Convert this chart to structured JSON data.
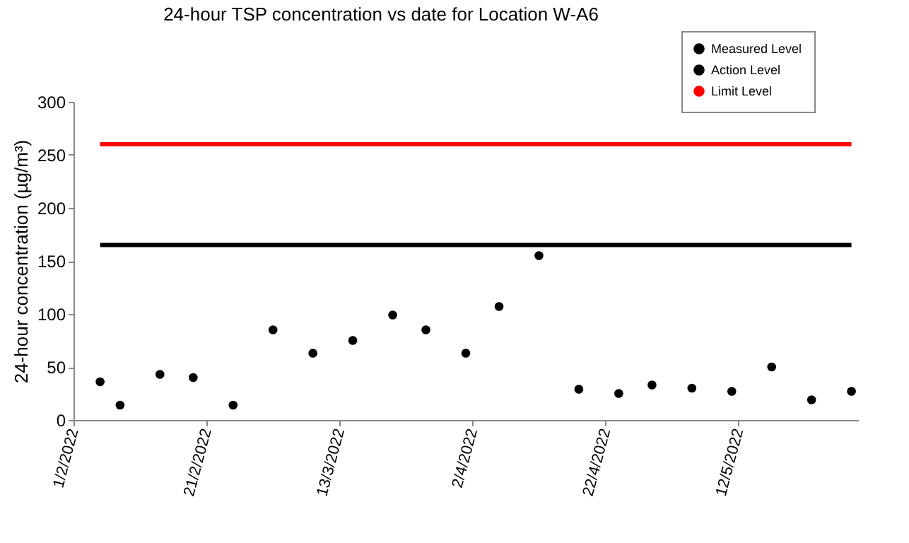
{
  "chart_data": {
    "type": "scatter",
    "title": "24-hour TSP concentration vs date for Location W-A6",
    "ylabel": "24-hour concentration (µg/m³)",
    "xlim": [
      "2022-02-01",
      "2022-05-30"
    ],
    "xticks": [
      {
        "value": "2022-02-01",
        "label": "1/2/2022"
      },
      {
        "value": "2022-02-21",
        "label": "21/2/2022"
      },
      {
        "value": "2022-03-13",
        "label": "13/3/2022"
      },
      {
        "value": "2022-04-02",
        "label": "2/4/2022"
      },
      {
        "value": "2022-04-22",
        "label": "22/4/2022"
      },
      {
        "value": "2022-05-12",
        "label": "12/5/2022"
      }
    ],
    "ylim": [
      0,
      300
    ],
    "yticks": [
      0,
      50,
      100,
      150,
      200,
      250,
      300
    ],
    "grid": false,
    "legend": "top right",
    "series": [
      {
        "name": "Measured Level",
        "marker": "circle",
        "color": "#000000",
        "x": [
          "2022-02-05",
          "2022-02-08",
          "2022-02-14",
          "2022-02-19",
          "2022-02-25",
          "2022-03-03",
          "2022-03-09",
          "2022-03-15",
          "2022-03-21",
          "2022-03-26",
          "2022-04-01",
          "2022-04-06",
          "2022-04-12",
          "2022-04-18",
          "2022-04-24",
          "2022-04-29",
          "2022-05-05",
          "2022-05-11",
          "2022-05-17",
          "2022-05-23",
          "2022-05-29"
        ],
        "values": [
          36,
          14,
          43,
          40,
          14,
          85,
          63,
          75,
          99,
          85,
          63,
          107,
          155,
          29,
          25,
          33,
          30,
          27,
          50,
          19,
          27
        ]
      },
      {
        "name": "Action Level",
        "type": "line",
        "marker": "none",
        "color": "#000000",
        "x": [
          "2022-02-05",
          "2022-05-29"
        ],
        "values": [
          165,
          165
        ]
      },
      {
        "name": "Limit Level",
        "type": "line",
        "marker": "none",
        "color": "#ff0000",
        "x": [
          "2022-02-05",
          "2022-05-29"
        ],
        "values": [
          260,
          260
        ]
      }
    ]
  }
}
